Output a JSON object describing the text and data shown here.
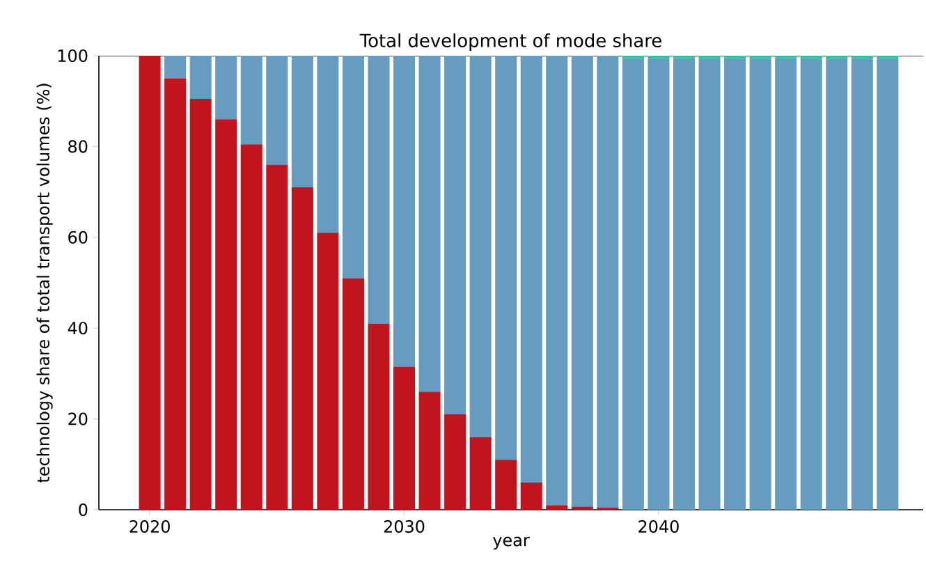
{
  "chart_data": {
    "type": "bar",
    "title": "Total development of mode share",
    "xlabel": "year",
    "ylabel": "technology share of total transport volumes (%)",
    "stacked": true,
    "x": [
      2020,
      2021,
      2022,
      2023,
      2024,
      2025,
      2026,
      2027,
      2028,
      2029,
      2030,
      2031,
      2032,
      2033,
      2034,
      2035,
      2036,
      2037,
      2038,
      2039,
      2040,
      2041,
      2042,
      2043,
      2044,
      2045,
      2046,
      2047,
      2048,
      2049
    ],
    "series": [
      {
        "color": "#c0141f",
        "values": [
          100,
          95,
          90.5,
          86,
          80.5,
          76,
          71,
          61,
          51,
          41,
          31.5,
          26,
          21,
          16,
          11,
          6,
          1,
          0.7,
          0.5,
          0,
          0,
          0,
          0,
          0,
          0,
          0,
          0,
          0,
          0,
          0
        ]
      },
      {
        "color": "#669cbf",
        "values": [
          0,
          5,
          9.5,
          14,
          19.5,
          24,
          29,
          39,
          49,
          59,
          68.5,
          74,
          79,
          84,
          89,
          94,
          99,
          99.3,
          99.5,
          99.5,
          99.5,
          99.5,
          99.5,
          99.5,
          99.5,
          99.5,
          99.5,
          99.5,
          99.5,
          99.5
        ]
      },
      {
        "color": "#1fcc99",
        "values": [
          0,
          0,
          0,
          0,
          0,
          0,
          0,
          0,
          0,
          0,
          0,
          0,
          0,
          0,
          0,
          0,
          0,
          0,
          0,
          0.5,
          0.5,
          0.5,
          0.5,
          0.5,
          0.5,
          0.5,
          0.5,
          0.5,
          0.5,
          0.5
        ]
      }
    ],
    "xlim": [
      2018,
      2050.4
    ],
    "ylim": [
      0,
      100
    ],
    "xticks": [
      2020,
      2030,
      2040
    ],
    "yticks": [
      0,
      20,
      40,
      60,
      80,
      100
    ]
  }
}
